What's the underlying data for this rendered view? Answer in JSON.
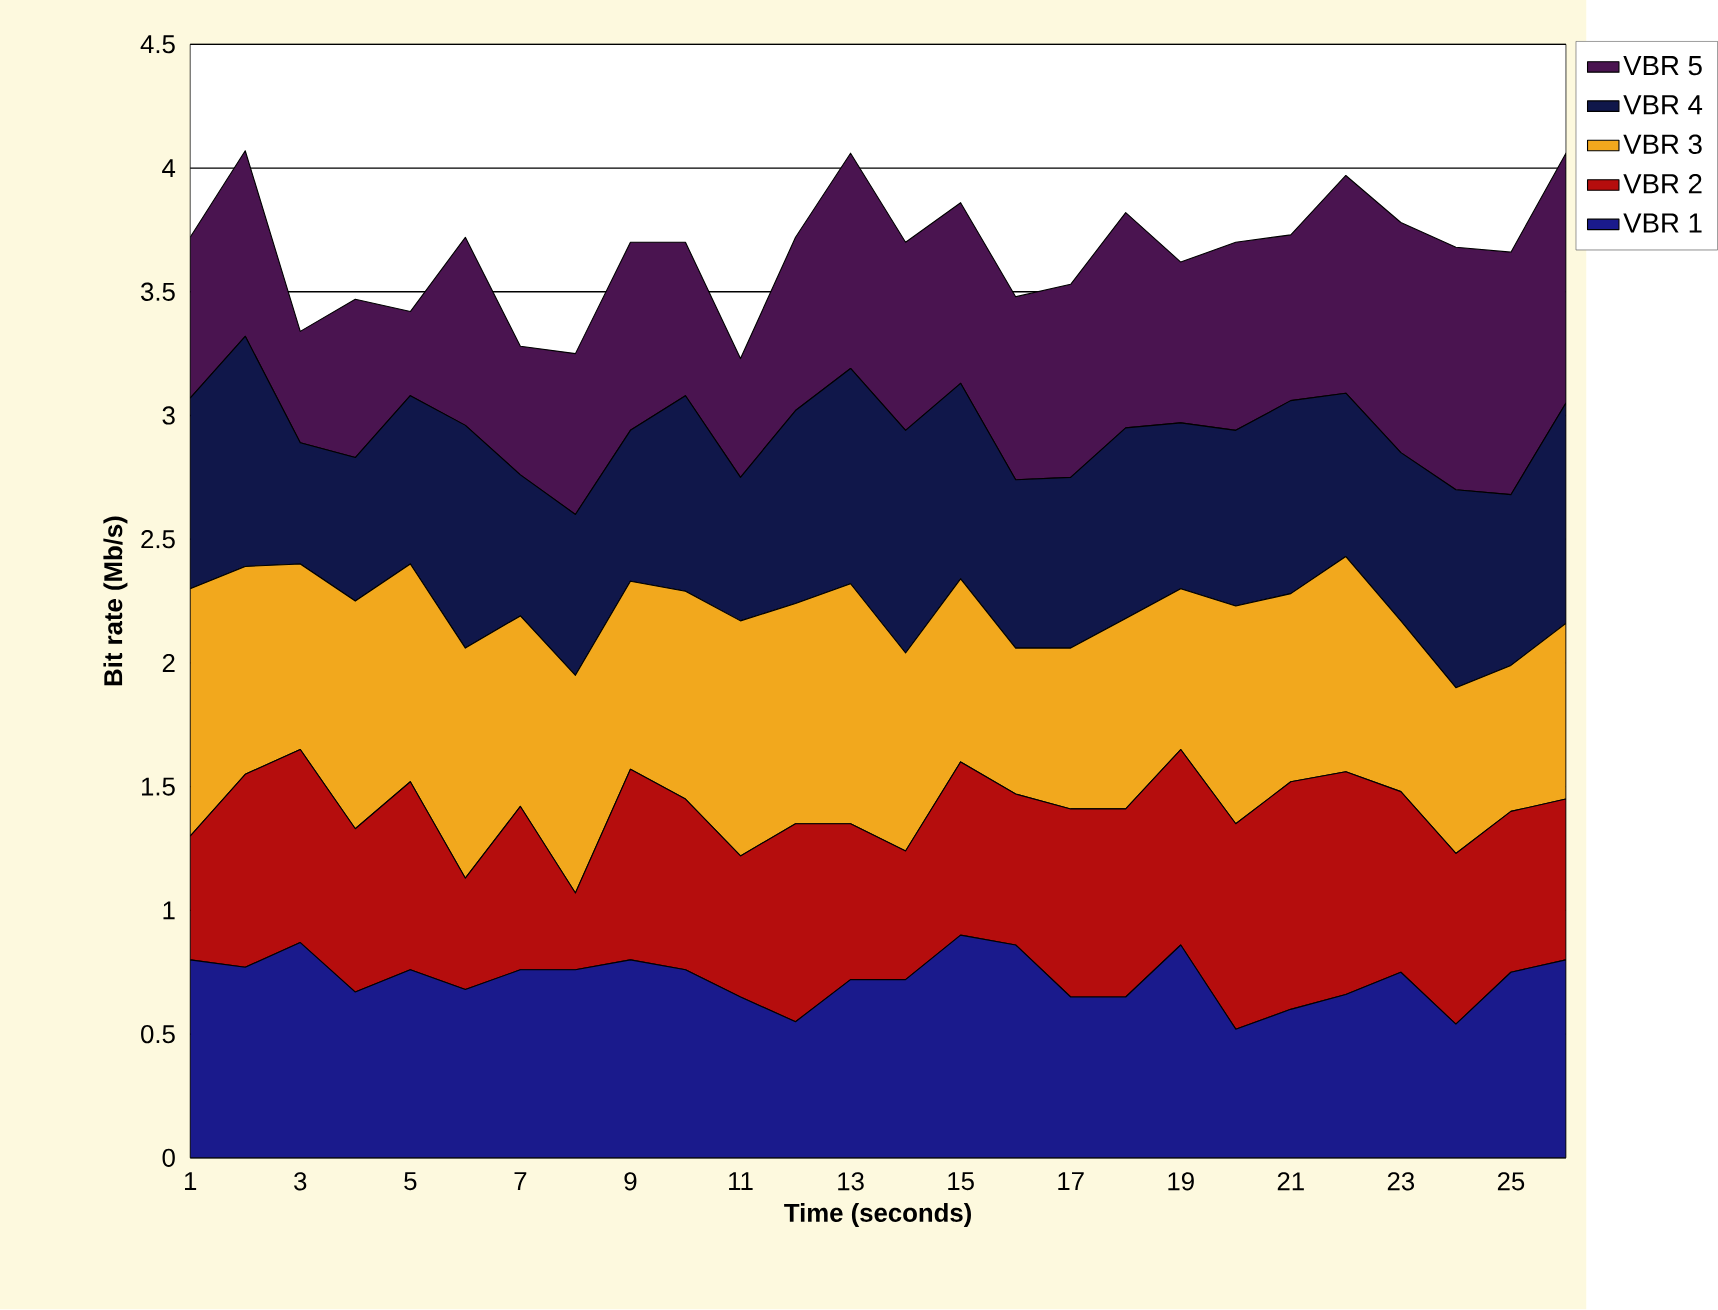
{
  "chart_data": {
    "type": "area",
    "stacked": true,
    "xlabel": "Time (seconds)",
    "ylabel": "Bit rate (Mb/s)",
    "x": [
      1,
      2,
      3,
      4,
      5,
      6,
      7,
      8,
      9,
      10,
      11,
      12,
      13,
      14,
      15,
      16,
      17,
      18,
      19,
      20,
      21,
      22,
      23,
      24,
      25,
      26
    ],
    "xlim": [
      1,
      26
    ],
    "xticks": [
      1,
      3,
      5,
      7,
      9,
      11,
      13,
      15,
      17,
      19,
      21,
      23,
      25
    ],
    "ylim": [
      0,
      4.5
    ],
    "yticks": [
      0,
      0.5,
      1,
      1.5,
      2,
      2.5,
      3,
      3.5,
      4,
      4.5
    ],
    "grid": "y",
    "legend": "right",
    "series": [
      {
        "name": "VBR 1",
        "color": "#1a1a8c",
        "values": [
          0.8,
          0.77,
          0.87,
          0.67,
          0.76,
          0.68,
          0.76,
          0.76,
          0.8,
          0.76,
          0.65,
          0.55,
          0.72,
          0.72,
          0.9,
          0.86,
          0.65,
          0.65,
          0.86,
          0.52,
          0.6,
          0.66,
          0.75,
          0.54,
          0.75,
          0.8
        ]
      },
      {
        "name": "VBR 2",
        "color": "#b50d0d",
        "values": [
          0.5,
          0.78,
          0.78,
          0.66,
          0.76,
          0.45,
          0.66,
          0.31,
          0.77,
          0.69,
          0.57,
          0.8,
          0.63,
          0.52,
          0.7,
          0.61,
          0.76,
          0.76,
          0.79,
          0.83,
          0.92,
          0.9,
          0.73,
          0.69,
          0.65,
          0.65
        ]
      },
      {
        "name": "VBR 3",
        "color": "#f2a81d",
        "values": [
          1.0,
          0.84,
          0.75,
          0.92,
          0.88,
          0.93,
          0.77,
          0.88,
          0.76,
          0.84,
          0.95,
          0.89,
          0.97,
          0.8,
          0.74,
          0.59,
          0.65,
          0.77,
          0.65,
          0.88,
          0.76,
          0.87,
          0.69,
          0.67,
          0.59,
          0.71
        ]
      },
      {
        "name": "VBR 4",
        "color": "#10174a",
        "values": [
          0.77,
          0.93,
          0.49,
          0.58,
          0.68,
          0.9,
          0.57,
          0.65,
          0.61,
          0.79,
          0.58,
          0.78,
          0.87,
          0.9,
          0.79,
          0.68,
          0.69,
          0.77,
          0.67,
          0.71,
          0.78,
          0.66,
          0.68,
          0.8,
          0.69,
          0.89
        ]
      },
      {
        "name": "VBR 5",
        "color": "#4a1450",
        "values": [
          0.65,
          0.75,
          0.45,
          0.64,
          0.34,
          0.76,
          0.52,
          0.65,
          0.76,
          0.62,
          0.48,
          0.7,
          0.87,
          0.76,
          0.73,
          0.74,
          0.78,
          0.87,
          0.65,
          0.76,
          0.67,
          0.88,
          0.93,
          0.98,
          0.98,
          1.01
        ]
      }
    ]
  }
}
